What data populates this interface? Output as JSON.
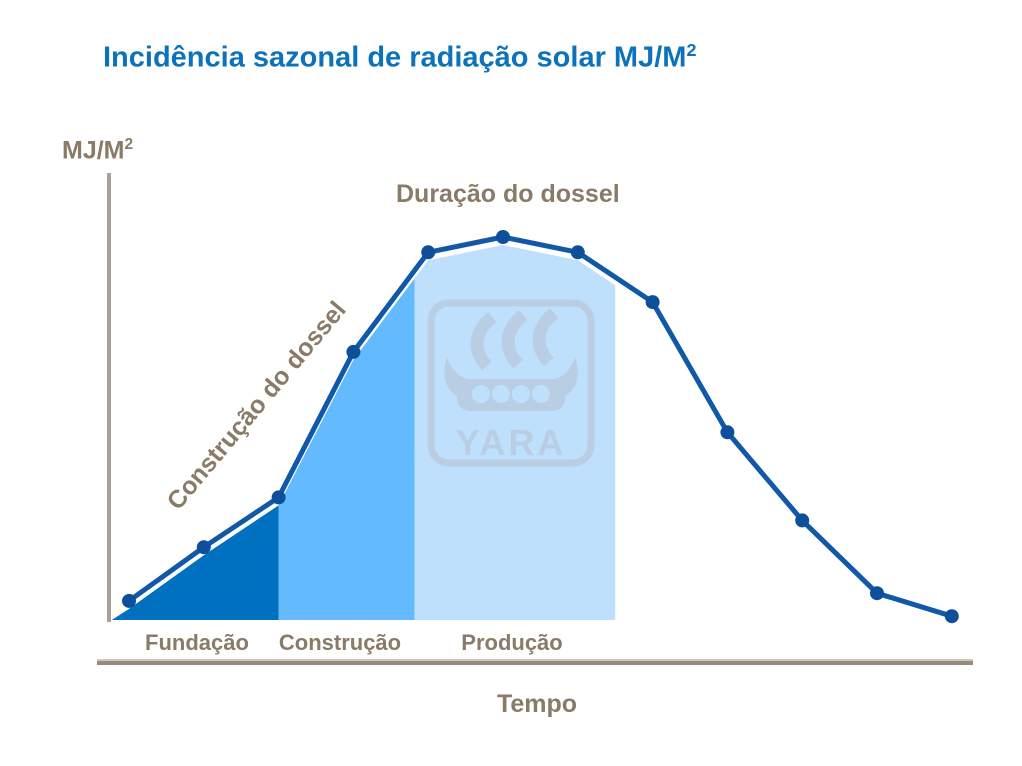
{
  "title": {
    "text": "Incidência sazonal de radiação solar MJ/M",
    "sup": "2"
  },
  "y_axis": {
    "label": "MJ/M",
    "sup": "2"
  },
  "x_axis": {
    "label": "Tempo"
  },
  "annotations": {
    "canopy_duration": "Duração do dossel",
    "canopy_construction": "Construção do dossel"
  },
  "phase_labels": {
    "foundation": "Fundação",
    "construction": "Construção",
    "production": "Produção"
  },
  "watermark": {
    "brand": "YARA"
  },
  "colors": {
    "title": "#0d72bc",
    "label_text": "#8a7a68",
    "line": "#1158a8",
    "marker": "#0e4f9c",
    "axis_vertical": "#aba094",
    "axis_horizontal": "#9a8a79",
    "axis_horizontal_highlight": "#cfc8bf",
    "fill_foundation": "#0070c0",
    "fill_construction": "#63baff",
    "fill_production": "#bfe0fc",
    "watermark": "#b9cee3"
  },
  "chart_data": {
    "type": "area",
    "title": "Incidência sazonal de radiação solar MJ/M²",
    "xlabel": "Tempo",
    "ylabel": "MJ/M²",
    "x": [
      1,
      2,
      3,
      4,
      5,
      6,
      7,
      8,
      9,
      10,
      11,
      12
    ],
    "values": [
      5,
      19,
      32,
      70,
      96,
      100,
      96,
      83,
      49,
      26,
      7,
      1
    ],
    "ylim": [
      0,
      105
    ],
    "grid": false,
    "legend": false,
    "phases": [
      {
        "label": "Fundação",
        "x_range": [
          0.77,
          3.0
        ],
        "fill": "#0070c0"
      },
      {
        "label": "Construção",
        "x_range": [
          3.0,
          4.82
        ],
        "fill": "#63baff"
      },
      {
        "label": "Produção",
        "x_range": [
          4.82,
          7.5
        ],
        "fill": "#bfe0fc"
      }
    ],
    "annotations": [
      "Construção do dossel",
      "Duração do dossel"
    ]
  }
}
